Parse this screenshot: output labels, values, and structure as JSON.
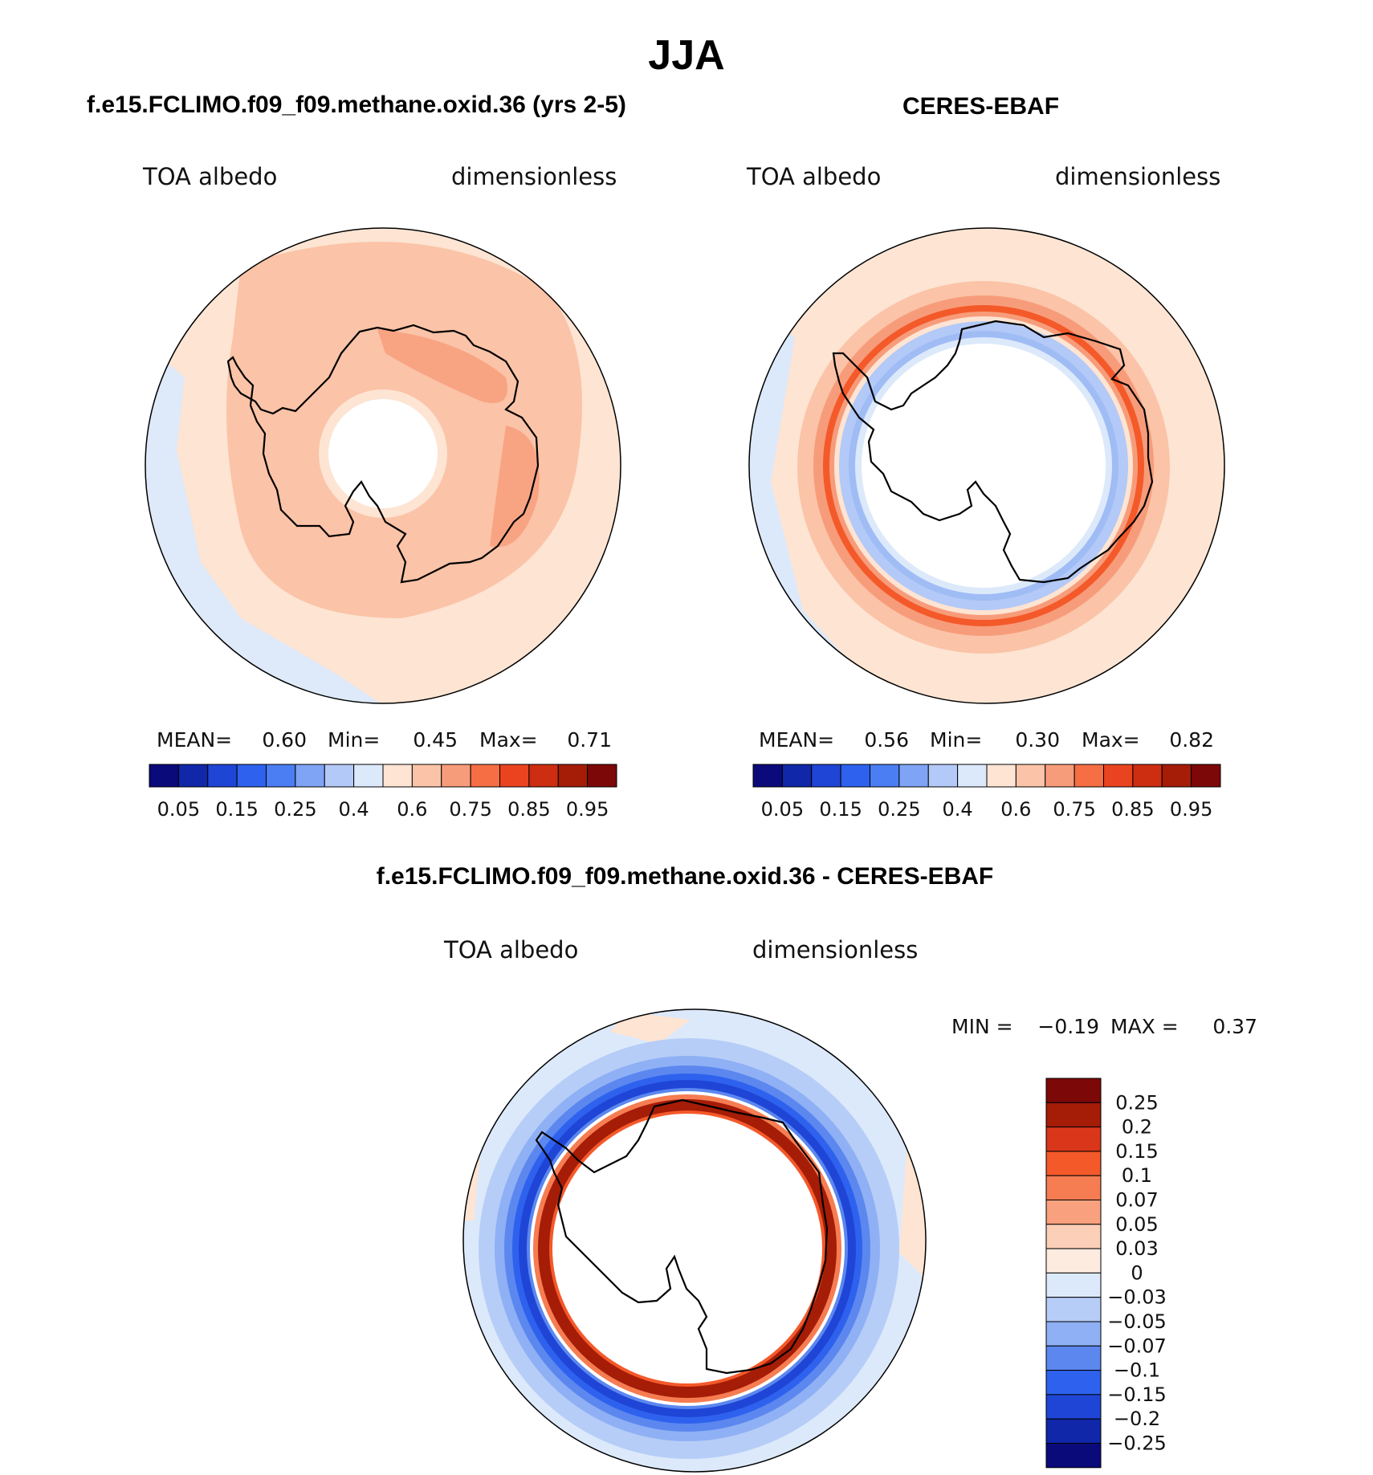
{
  "title": "JJA",
  "panels": [
    {
      "id": "model",
      "title": "f.e15.FCLIMO.f09_f09.methane.oxid.36 (yrs 2-5)",
      "left_label": "TOA albedo",
      "right_label": "dimensionless",
      "mean_label": "MEAN=",
      "mean": "0.60",
      "min_label": "Min=",
      "min": "0.45",
      "max_label": "Max=",
      "max": "0.71"
    },
    {
      "id": "obs",
      "title": "CERES-EBAF",
      "left_label": "TOA albedo",
      "right_label": "dimensionless",
      "mean_label": "MEAN=",
      "mean": "0.56",
      "min_label": "Min=",
      "min": "0.30",
      "max_label": "Max=",
      "max": "0.82"
    }
  ],
  "abs_colorbar": {
    "colors": [
      "#0a0a7a",
      "#0f27a8",
      "#1f45d6",
      "#2e62ee",
      "#4a7ef2",
      "#7fa3f5",
      "#b3c9f7",
      "#dce9fb",
      "#fde4d3",
      "#fbc3a7",
      "#f79c7a",
      "#f66e43",
      "#e9441f",
      "#cd2d10",
      "#a51c07",
      "#7c0807"
    ],
    "labels": [
      "0.05",
      "0.15",
      "0.25",
      "0.4",
      "0.6",
      "0.75",
      "0.85",
      "0.95"
    ]
  },
  "diff_panel": {
    "title": "f.e15.FCLIMO.f09_f09.methane.oxid.36 - CERES-EBAF",
    "left_label": "TOA albedo",
    "right_label": "dimensionless",
    "min_label": "MIN =",
    "min": "−0.19",
    "max_label": "MAX =",
    "max": "0.37"
  },
  "diff_colorbar": {
    "colors_top_to_bottom": [
      "#7c0807",
      "#a51c07",
      "#d9361a",
      "#f4592a",
      "#f67c52",
      "#f9a07e",
      "#fccfb8",
      "#fdebe0",
      "#dce9fb",
      "#b6cdf7",
      "#8fb0f4",
      "#5b87ef",
      "#2e62ee",
      "#1f45d6",
      "#0f27a8",
      "#0a0a7a"
    ],
    "labels": [
      "0.25",
      "0.2",
      "0.15",
      "0.1",
      "0.07",
      "0.05",
      "0.03",
      "0",
      "−0.03",
      "−0.05",
      "−0.07",
      "−0.1",
      "−0.15",
      "−0.2",
      "−0.25"
    ]
  },
  "chart_data": [
    {
      "type": "heatmap",
      "title": "f.e15.FCLIMO.f09_f09.methane.oxid.36 (yrs 2-5)",
      "variable": "TOA albedo",
      "units": "dimensionless",
      "projection": "south polar stereographic",
      "mean": 0.6,
      "min": 0.45,
      "max": 0.71,
      "contour_levels": [
        0.05,
        0.1,
        0.15,
        0.2,
        0.25,
        0.3,
        0.4,
        0.5,
        0.6,
        0.65,
        0.75,
        0.8,
        0.85,
        0.9,
        0.95
      ]
    },
    {
      "type": "heatmap",
      "title": "CERES-EBAF",
      "variable": "TOA albedo",
      "units": "dimensionless",
      "projection": "south polar stereographic",
      "mean": 0.56,
      "min": 0.3,
      "max": 0.82,
      "contour_levels": [
        0.05,
        0.1,
        0.15,
        0.2,
        0.25,
        0.3,
        0.4,
        0.5,
        0.6,
        0.65,
        0.75,
        0.8,
        0.85,
        0.9,
        0.95
      ]
    },
    {
      "type": "heatmap",
      "title": "f.e15.FCLIMO.f09_f09.methane.oxid.36 - CERES-EBAF",
      "variable": "TOA albedo",
      "units": "dimensionless",
      "projection": "south polar stereographic",
      "min": -0.19,
      "max": 0.37,
      "contour_levels": [
        -0.25,
        -0.2,
        -0.15,
        -0.1,
        -0.07,
        -0.05,
        -0.03,
        0,
        0.03,
        0.05,
        0.07,
        0.1,
        0.15,
        0.2,
        0.25
      ]
    }
  ]
}
